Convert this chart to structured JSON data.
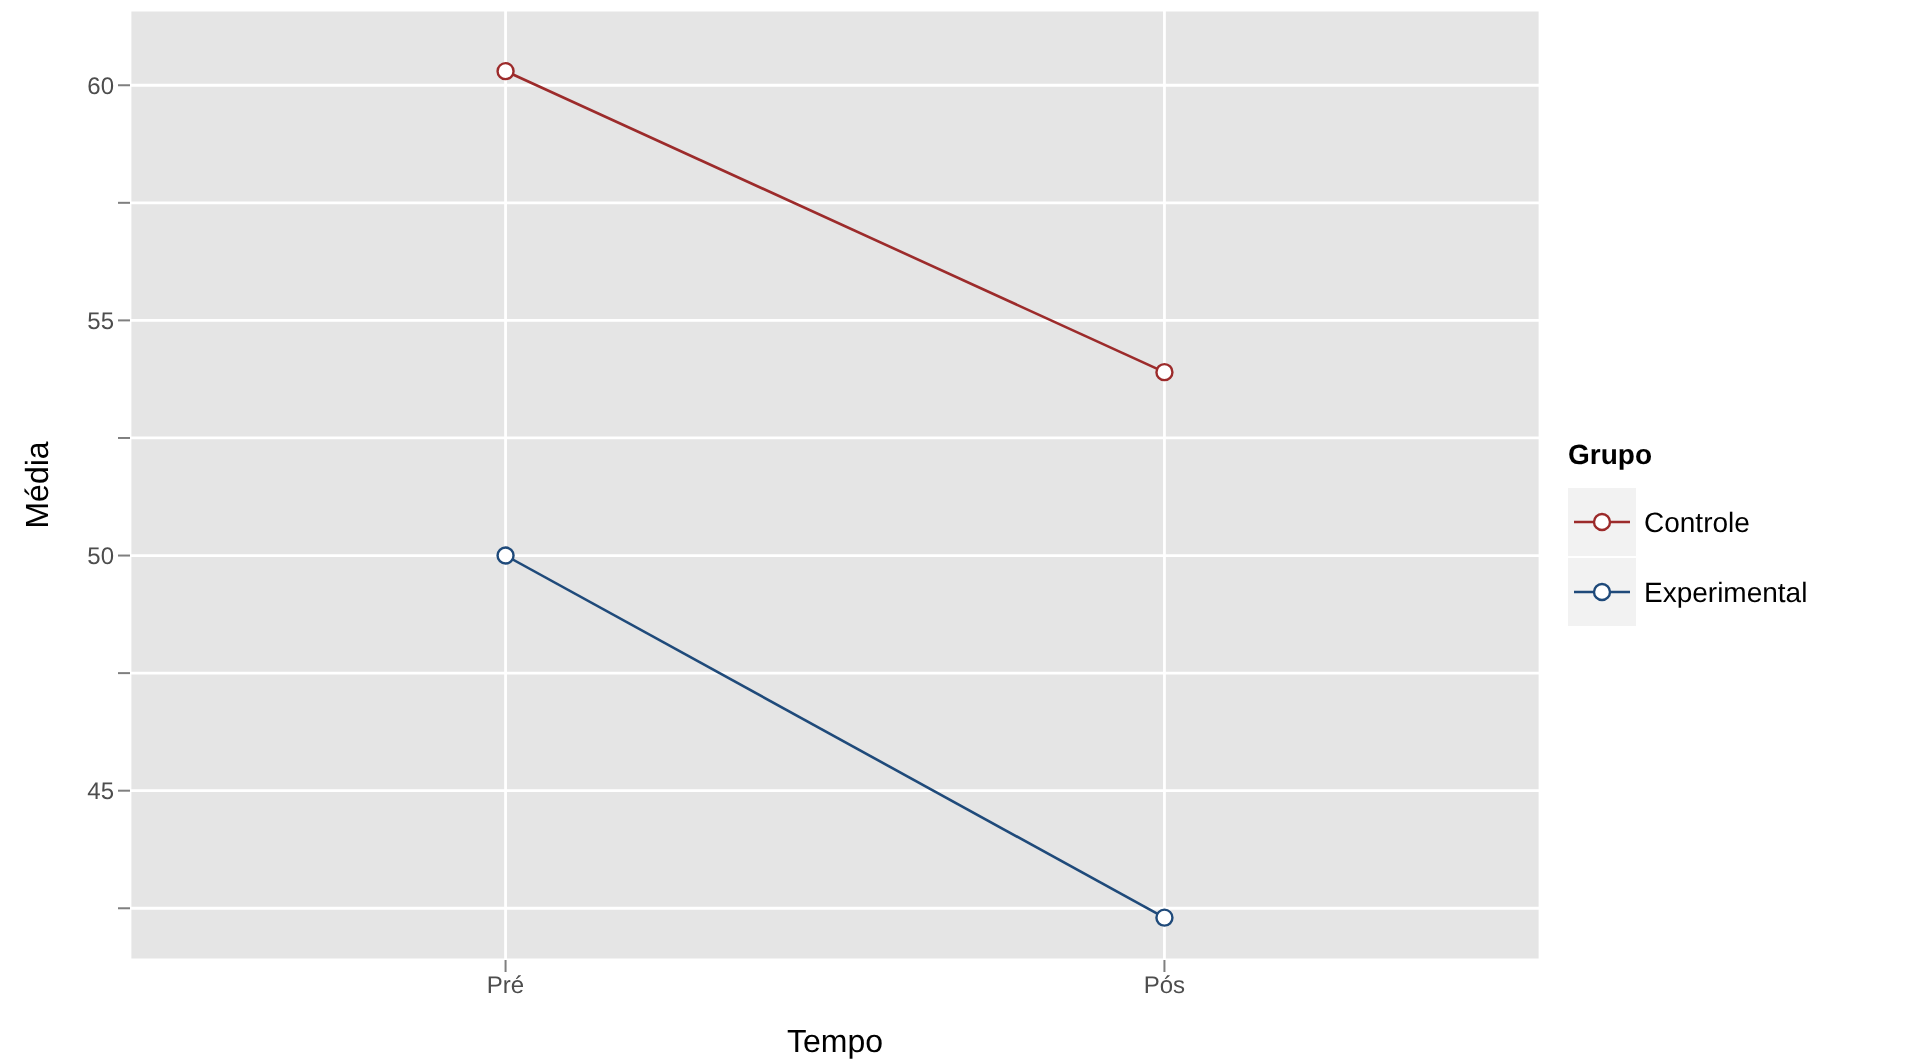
{
  "chart_data": {
    "type": "line",
    "xlabel": "Tempo",
    "ylabel": "Média",
    "legend_title": "Grupo",
    "categories": [
      "Pré",
      "Pós"
    ],
    "series": [
      {
        "name": "Controle",
        "color": "#9c2b2b",
        "values": [
          60.3,
          53.9
        ]
      },
      {
        "name": "Experimental",
        "color": "#1f4a7a",
        "values": [
          50.0,
          42.3
        ]
      }
    ],
    "ylim": [
      41.4,
      61.6
    ],
    "yticks": [
      {
        "value": 42.5,
        "label": null
      },
      45,
      {
        "value": 47.5,
        "label": null
      },
      50,
      {
        "value": 52.5,
        "label": null
      },
      55,
      {
        "value": 57.5,
        "label": null
      },
      60
    ],
    "grid": true,
    "legend": "right",
    "marker": "circle",
    "line_style": "solid"
  }
}
